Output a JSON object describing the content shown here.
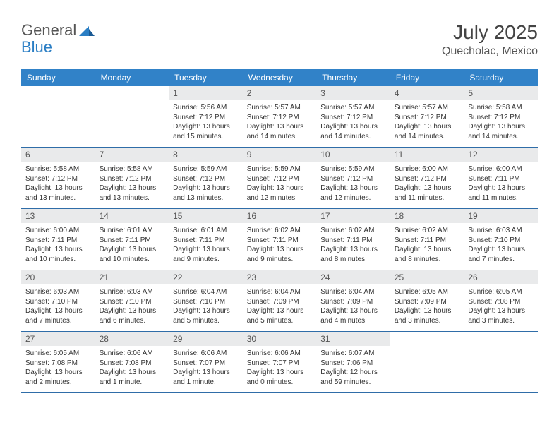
{
  "brand": {
    "name1": "General",
    "name2": "Blue"
  },
  "title": "July 2025",
  "location": "Quecholac, Mexico",
  "colors": {
    "header_bg": "#3182c8",
    "header_text": "#ffffff",
    "daynum_bg": "#e9eaeb",
    "daynum_text": "#555555",
    "border": "#2f6da8",
    "brand_gray": "#555555",
    "brand_blue": "#2a7ec4"
  },
  "day_headers": [
    "Sunday",
    "Monday",
    "Tuesday",
    "Wednesday",
    "Thursday",
    "Friday",
    "Saturday"
  ],
  "weeks": [
    [
      {
        "blank": true
      },
      {
        "blank": true
      },
      {
        "n": "1",
        "sunrise": "5:56 AM",
        "sunset": "7:12 PM",
        "daylight": "13 hours and 15 minutes."
      },
      {
        "n": "2",
        "sunrise": "5:57 AM",
        "sunset": "7:12 PM",
        "daylight": "13 hours and 14 minutes."
      },
      {
        "n": "3",
        "sunrise": "5:57 AM",
        "sunset": "7:12 PM",
        "daylight": "13 hours and 14 minutes."
      },
      {
        "n": "4",
        "sunrise": "5:57 AM",
        "sunset": "7:12 PM",
        "daylight": "13 hours and 14 minutes."
      },
      {
        "n": "5",
        "sunrise": "5:58 AM",
        "sunset": "7:12 PM",
        "daylight": "13 hours and 14 minutes."
      }
    ],
    [
      {
        "n": "6",
        "sunrise": "5:58 AM",
        "sunset": "7:12 PM",
        "daylight": "13 hours and 13 minutes."
      },
      {
        "n": "7",
        "sunrise": "5:58 AM",
        "sunset": "7:12 PM",
        "daylight": "13 hours and 13 minutes."
      },
      {
        "n": "8",
        "sunrise": "5:59 AM",
        "sunset": "7:12 PM",
        "daylight": "13 hours and 13 minutes."
      },
      {
        "n": "9",
        "sunrise": "5:59 AM",
        "sunset": "7:12 PM",
        "daylight": "13 hours and 12 minutes."
      },
      {
        "n": "10",
        "sunrise": "5:59 AM",
        "sunset": "7:12 PM",
        "daylight": "13 hours and 12 minutes."
      },
      {
        "n": "11",
        "sunrise": "6:00 AM",
        "sunset": "7:12 PM",
        "daylight": "13 hours and 11 minutes."
      },
      {
        "n": "12",
        "sunrise": "6:00 AM",
        "sunset": "7:11 PM",
        "daylight": "13 hours and 11 minutes."
      }
    ],
    [
      {
        "n": "13",
        "sunrise": "6:00 AM",
        "sunset": "7:11 PM",
        "daylight": "13 hours and 10 minutes."
      },
      {
        "n": "14",
        "sunrise": "6:01 AM",
        "sunset": "7:11 PM",
        "daylight": "13 hours and 10 minutes."
      },
      {
        "n": "15",
        "sunrise": "6:01 AM",
        "sunset": "7:11 PM",
        "daylight": "13 hours and 9 minutes."
      },
      {
        "n": "16",
        "sunrise": "6:02 AM",
        "sunset": "7:11 PM",
        "daylight": "13 hours and 9 minutes."
      },
      {
        "n": "17",
        "sunrise": "6:02 AM",
        "sunset": "7:11 PM",
        "daylight": "13 hours and 8 minutes."
      },
      {
        "n": "18",
        "sunrise": "6:02 AM",
        "sunset": "7:11 PM",
        "daylight": "13 hours and 8 minutes."
      },
      {
        "n": "19",
        "sunrise": "6:03 AM",
        "sunset": "7:10 PM",
        "daylight": "13 hours and 7 minutes."
      }
    ],
    [
      {
        "n": "20",
        "sunrise": "6:03 AM",
        "sunset": "7:10 PM",
        "daylight": "13 hours and 7 minutes."
      },
      {
        "n": "21",
        "sunrise": "6:03 AM",
        "sunset": "7:10 PM",
        "daylight": "13 hours and 6 minutes."
      },
      {
        "n": "22",
        "sunrise": "6:04 AM",
        "sunset": "7:10 PM",
        "daylight": "13 hours and 5 minutes."
      },
      {
        "n": "23",
        "sunrise": "6:04 AM",
        "sunset": "7:09 PM",
        "daylight": "13 hours and 5 minutes."
      },
      {
        "n": "24",
        "sunrise": "6:04 AM",
        "sunset": "7:09 PM",
        "daylight": "13 hours and 4 minutes."
      },
      {
        "n": "25",
        "sunrise": "6:05 AM",
        "sunset": "7:09 PM",
        "daylight": "13 hours and 3 minutes."
      },
      {
        "n": "26",
        "sunrise": "6:05 AM",
        "sunset": "7:08 PM",
        "daylight": "13 hours and 3 minutes."
      }
    ],
    [
      {
        "n": "27",
        "sunrise": "6:05 AM",
        "sunset": "7:08 PM",
        "daylight": "13 hours and 2 minutes."
      },
      {
        "n": "28",
        "sunrise": "6:06 AM",
        "sunset": "7:08 PM",
        "daylight": "13 hours and 1 minute."
      },
      {
        "n": "29",
        "sunrise": "6:06 AM",
        "sunset": "7:07 PM",
        "daylight": "13 hours and 1 minute."
      },
      {
        "n": "30",
        "sunrise": "6:06 AM",
        "sunset": "7:07 PM",
        "daylight": "13 hours and 0 minutes."
      },
      {
        "n": "31",
        "sunrise": "6:07 AM",
        "sunset": "7:06 PM",
        "daylight": "12 hours and 59 minutes."
      },
      {
        "blank": true
      },
      {
        "blank": true
      }
    ]
  ]
}
